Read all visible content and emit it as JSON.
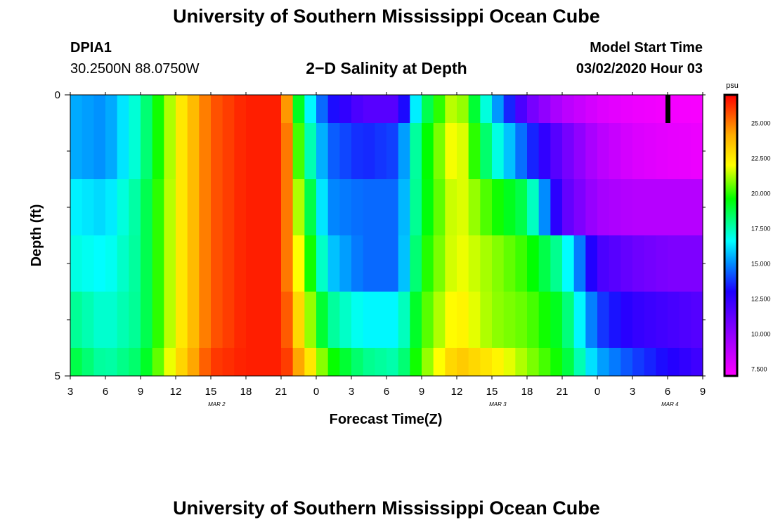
{
  "header": {
    "title": "University of Southern Mississippi Ocean Cube",
    "station_id": "DPIA1",
    "station_coords": "30.2500N 88.0750W",
    "plot_title": "2−D Salinity at Depth",
    "model_start_label": "Model Start Time",
    "model_start_value": "03/02/2020 Hour 03"
  },
  "footer": {
    "title": "University of Southern Mississippi Ocean Cube"
  },
  "chart_data": {
    "type": "heatmap",
    "title": "2−D Salinity at Depth",
    "xlabel": "Forecast Time(Z)",
    "ylabel": "Depth (ft)",
    "y_ticks": [
      "0",
      "5"
    ],
    "ylim": [
      0,
      5
    ],
    "x_ticks": [
      "3",
      "6",
      "9",
      "12",
      "15",
      "18",
      "21",
      "0",
      "3",
      "6",
      "9",
      "12",
      "15",
      "18",
      "21",
      "0",
      "3",
      "6",
      "9"
    ],
    "date_labels": [
      "MAR 2",
      "MAR 3",
      "MAR 4"
    ],
    "time_range_hours": [
      0,
      54
    ],
    "depth_levels_ft": [
      0.25,
      1.0,
      2.0,
      3.0,
      4.0,
      4.75
    ],
    "colorbar": {
      "unit": "psu",
      "ticks": [
        "25.000",
        "22.500",
        "20.000",
        "17.500",
        "15.000",
        "12.500",
        "10.000",
        "7.500"
      ],
      "range": [
        7,
        27
      ]
    },
    "current_time_marker_hour": 51,
    "salinity_keyframes": {
      "hours": [
        0,
        3,
        6,
        9,
        12,
        15,
        18,
        18.5,
        19,
        20,
        22,
        25,
        28,
        30,
        33,
        36,
        39,
        42,
        45,
        48,
        51,
        54
      ],
      "rows": [
        [
          15.5,
          15.0,
          17.5,
          22.0,
          25.5,
          26.5,
          26.5,
          24.5,
          21.0,
          17.5,
          13.5,
          11.5,
          11.5,
          18.0,
          22.0,
          16.0,
          11.0,
          9.0,
          8.0,
          7.5,
          7.3,
          7.2
        ],
        [
          15.5,
          15.0,
          17.5,
          22.0,
          25.5,
          26.5,
          26.5,
          25.0,
          22.0,
          18.5,
          14.5,
          13.5,
          14.0,
          19.0,
          22.5,
          17.5,
          14.0,
          11.0,
          9.0,
          8.0,
          7.7,
          7.5
        ],
        [
          16.5,
          16.0,
          18.0,
          22.0,
          25.5,
          26.5,
          26.5,
          25.0,
          22.5,
          20.0,
          15.0,
          14.5,
          14.5,
          19.0,
          22.0,
          20.0,
          18.5,
          11.5,
          9.5,
          9.0,
          9.0,
          9.0
        ],
        [
          17.0,
          16.5,
          18.0,
          22.0,
          25.5,
          26.5,
          26.5,
          25.0,
          23.0,
          21.0,
          16.0,
          14.5,
          14.5,
          19.5,
          22.0,
          21.0,
          20.0,
          17.5,
          12.0,
          11.0,
          10.5,
          10.5
        ],
        [
          18.0,
          17.0,
          18.0,
          22.0,
          25.5,
          26.5,
          26.5,
          25.5,
          24.0,
          22.0,
          18.0,
          16.5,
          16.5,
          20.0,
          22.5,
          21.0,
          20.5,
          19.0,
          14.0,
          12.5,
          12.0,
          11.5
        ],
        [
          19.0,
          17.5,
          18.5,
          22.5,
          26.0,
          26.5,
          26.5,
          26.0,
          25.0,
          23.5,
          20.0,
          18.0,
          17.5,
          20.5,
          23.5,
          22.5,
          21.0,
          19.5,
          15.5,
          14.0,
          13.0,
          12.0
        ]
      ]
    }
  }
}
